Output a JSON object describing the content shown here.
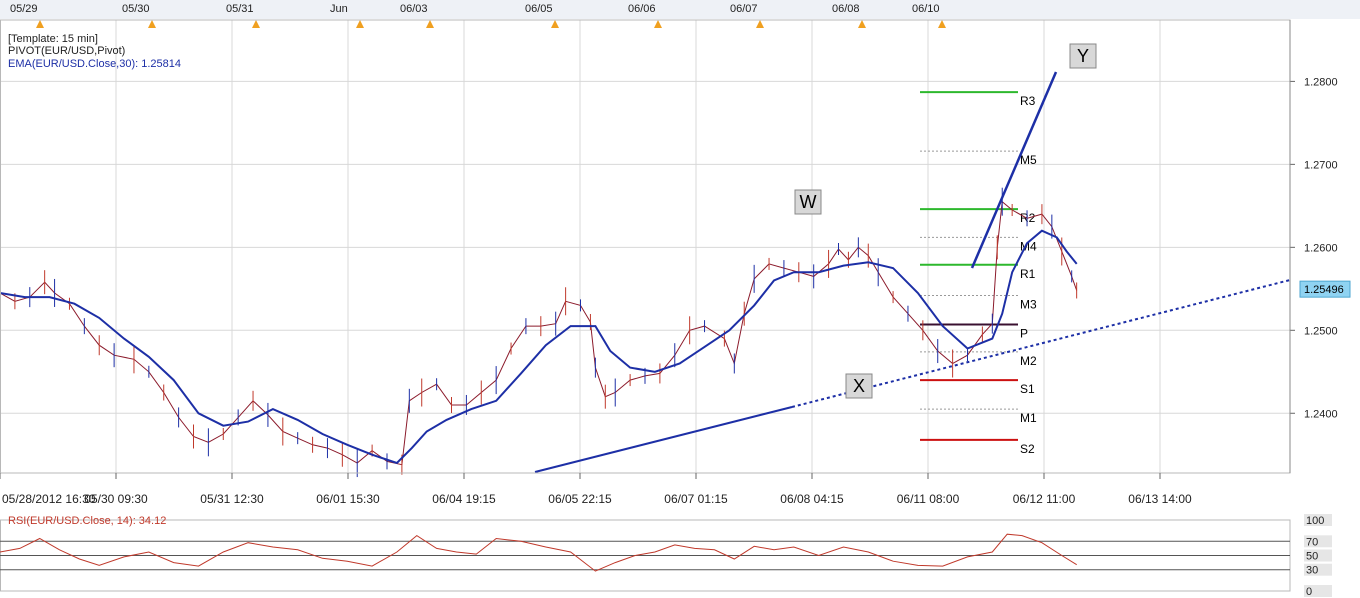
{
  "chart_data": {
    "type": "line",
    "instrument": "EUR/USD",
    "top_dates": [
      "05/29",
      "05/30",
      "05/31",
      "Jun",
      "06/03",
      "06/05",
      "06/06",
      "06/07",
      "06/08",
      "06/10"
    ],
    "x_labels": [
      "05/28/2012 16:30",
      "05/30 09:30",
      "05/31 12:30",
      "06/01 15:30",
      "06/04 19:15",
      "06/05 22:15",
      "06/07 01:15",
      "06/08 04:15",
      "06/11 08:00",
      "06/12 11:00",
      "06/13 14:00"
    ],
    "y_ticks": [
      "1.2800",
      "1.2700",
      "1.2600",
      "1.2500",
      "1.2400"
    ],
    "y_range": [
      1.2328,
      1.2874
    ],
    "current_price": "1.25496",
    "legend": [
      "[Template: 15 min]",
      "PIVOT(EUR/USD,Pivot)",
      "EMA(EUR/USD.Close,30): 1.25814"
    ],
    "pivots": [
      {
        "label": "R3",
        "value": 1.2787,
        "color": "#2db82d",
        "style": "solid"
      },
      {
        "label": "M5",
        "value": 1.2716,
        "color": "#999999",
        "style": "dotted"
      },
      {
        "label": "R2",
        "value": 1.2646,
        "color": "#2db82d",
        "style": "solid"
      },
      {
        "label": "M4",
        "value": 1.2612,
        "color": "#999999",
        "style": "dotted"
      },
      {
        "label": "R1",
        "value": 1.2579,
        "color": "#2db82d",
        "style": "solid"
      },
      {
        "label": "M3",
        "value": 1.2542,
        "color": "#999999",
        "style": "dotted"
      },
      {
        "label": "P",
        "value": 1.2507,
        "color": "#3a1030",
        "style": "solid"
      },
      {
        "label": "M2",
        "value": 1.2474,
        "color": "#999999",
        "style": "dotted"
      },
      {
        "label": "S1",
        "value": 1.244,
        "color": "#cc1111",
        "style": "solid"
      },
      {
        "label": "M1",
        "value": 1.2405,
        "color": "#999999",
        "style": "dotted"
      },
      {
        "label": "S2",
        "value": 1.2368,
        "color": "#cc1111",
        "style": "solid"
      }
    ],
    "price_series": [
      [
        0.0,
        1.2545
      ],
      [
        0.3,
        1.2535
      ],
      [
        0.6,
        1.254
      ],
      [
        0.9,
        1.2558
      ],
      [
        1.1,
        1.2545
      ],
      [
        1.4,
        1.2532
      ],
      [
        1.7,
        1.2505
      ],
      [
        2.0,
        1.2482
      ],
      [
        2.3,
        1.247
      ],
      [
        2.7,
        1.2465
      ],
      [
        3.0,
        1.245
      ],
      [
        3.3,
        1.2425
      ],
      [
        3.6,
        1.2395
      ],
      [
        3.9,
        1.2372
      ],
      [
        4.2,
        1.2365
      ],
      [
        4.5,
        1.2375
      ],
      [
        4.8,
        1.2395
      ],
      [
        5.1,
        1.2415
      ],
      [
        5.4,
        1.2398
      ],
      [
        5.7,
        1.2378
      ],
      [
        6.0,
        1.237
      ],
      [
        6.3,
        1.2362
      ],
      [
        6.6,
        1.2358
      ],
      [
        6.9,
        1.235
      ],
      [
        7.2,
        1.234
      ],
      [
        7.5,
        1.2355
      ],
      [
        7.8,
        1.2342
      ],
      [
        8.1,
        1.2338
      ],
      [
        8.25,
        1.2415
      ],
      [
        8.5,
        1.2425
      ],
      [
        8.8,
        1.2435
      ],
      [
        9.1,
        1.241
      ],
      [
        9.4,
        1.241
      ],
      [
        9.7,
        1.2425
      ],
      [
        10.0,
        1.244
      ],
      [
        10.3,
        1.2478
      ],
      [
        10.6,
        1.2505
      ],
      [
        10.9,
        1.2505
      ],
      [
        11.2,
        1.2508
      ],
      [
        11.4,
        1.2535
      ],
      [
        11.7,
        1.253
      ],
      [
        11.9,
        1.251
      ],
      [
        12.0,
        1.2455
      ],
      [
        12.2,
        1.242
      ],
      [
        12.4,
        1.2425
      ],
      [
        12.7,
        1.244
      ],
      [
        13.0,
        1.2445
      ],
      [
        13.3,
        1.2448
      ],
      [
        13.6,
        1.247
      ],
      [
        13.9,
        1.25
      ],
      [
        14.2,
        1.2505
      ],
      [
        14.6,
        1.249
      ],
      [
        14.8,
        1.246
      ],
      [
        15.0,
        1.252
      ],
      [
        15.2,
        1.2562
      ],
      [
        15.5,
        1.258
      ],
      [
        15.8,
        1.2575
      ],
      [
        16.1,
        1.257
      ],
      [
        16.4,
        1.2565
      ],
      [
        16.7,
        1.258
      ],
      [
        16.9,
        1.2598
      ],
      [
        17.1,
        1.2585
      ],
      [
        17.3,
        1.26
      ],
      [
        17.5,
        1.259
      ],
      [
        17.7,
        1.257
      ],
      [
        18.0,
        1.254
      ],
      [
        18.3,
        1.252
      ],
      [
        18.6,
        1.25
      ],
      [
        18.9,
        1.2475
      ],
      [
        19.2,
        1.246
      ],
      [
        19.5,
        1.247
      ],
      [
        19.8,
        1.2495
      ],
      [
        20.0,
        1.2508
      ],
      [
        20.1,
        1.26
      ],
      [
        20.2,
        1.2655
      ],
      [
        20.4,
        1.2645
      ],
      [
        20.7,
        1.2635
      ],
      [
        21.0,
        1.264
      ],
      [
        21.2,
        1.2625
      ],
      [
        21.4,
        1.2595
      ],
      [
        21.6,
        1.2565
      ],
      [
        21.7,
        1.2548
      ]
    ],
    "ema_series": [
      [
        0.0,
        1.2545
      ],
      [
        0.5,
        1.254
      ],
      [
        1.0,
        1.254
      ],
      [
        1.5,
        1.2532
      ],
      [
        2.0,
        1.2515
      ],
      [
        2.5,
        1.249
      ],
      [
        3.0,
        1.2468
      ],
      [
        3.5,
        1.244
      ],
      [
        4.0,
        1.24
      ],
      [
        4.5,
        1.2385
      ],
      [
        5.0,
        1.239
      ],
      [
        5.5,
        1.2405
      ],
      [
        6.0,
        1.2392
      ],
      [
        6.5,
        1.2375
      ],
      [
        7.0,
        1.2362
      ],
      [
        7.5,
        1.235
      ],
      [
        8.0,
        1.234
      ],
      [
        8.3,
        1.2358
      ],
      [
        8.6,
        1.2378
      ],
      [
        9.0,
        1.2392
      ],
      [
        9.5,
        1.2405
      ],
      [
        10.0,
        1.2415
      ],
      [
        10.5,
        1.2448
      ],
      [
        11.0,
        1.2482
      ],
      [
        11.5,
        1.2505
      ],
      [
        12.0,
        1.2505
      ],
      [
        12.3,
        1.2475
      ],
      [
        12.7,
        1.2455
      ],
      [
        13.2,
        1.245
      ],
      [
        13.7,
        1.246
      ],
      [
        14.2,
        1.248
      ],
      [
        14.7,
        1.25
      ],
      [
        15.2,
        1.253
      ],
      [
        15.6,
        1.256
      ],
      [
        16.0,
        1.257
      ],
      [
        16.5,
        1.257
      ],
      [
        17.0,
        1.2578
      ],
      [
        17.5,
        1.2582
      ],
      [
        18.0,
        1.2575
      ],
      [
        18.5,
        1.2545
      ],
      [
        19.0,
        1.2505
      ],
      [
        19.5,
        1.2478
      ],
      [
        20.0,
        1.249
      ],
      [
        20.2,
        1.252
      ],
      [
        20.4,
        1.257
      ],
      [
        20.7,
        1.2605
      ],
      [
        21.0,
        1.262
      ],
      [
        21.3,
        1.2612
      ],
      [
        21.5,
        1.2595
      ],
      [
        21.7,
        1.258
      ]
    ],
    "rsi": {
      "label": "RSI(EUR/USD.Close, 14): 34.12",
      "ticks": [
        "100",
        "70",
        "50",
        "30",
        "0"
      ],
      "series": [
        [
          0.0,
          55
        ],
        [
          0.4,
          60
        ],
        [
          0.8,
          74
        ],
        [
          1.2,
          58
        ],
        [
          1.6,
          45
        ],
        [
          2.0,
          36
        ],
        [
          2.5,
          48
        ],
        [
          3.0,
          55
        ],
        [
          3.5,
          40
        ],
        [
          4.0,
          35
        ],
        [
          4.5,
          55
        ],
        [
          5.0,
          68
        ],
        [
          5.5,
          62
        ],
        [
          6.0,
          58
        ],
        [
          6.5,
          46
        ],
        [
          7.0,
          42
        ],
        [
          7.5,
          35
        ],
        [
          8.0,
          55
        ],
        [
          8.4,
          78
        ],
        [
          8.8,
          60
        ],
        [
          9.2,
          55
        ],
        [
          9.6,
          52
        ],
        [
          10.0,
          74
        ],
        [
          10.5,
          70
        ],
        [
          11.0,
          62
        ],
        [
          11.5,
          55
        ],
        [
          12.0,
          28
        ],
        [
          12.4,
          40
        ],
        [
          12.8,
          50
        ],
        [
          13.2,
          55
        ],
        [
          13.6,
          65
        ],
        [
          14.0,
          60
        ],
        [
          14.4,
          58
        ],
        [
          14.8,
          45
        ],
        [
          15.2,
          63
        ],
        [
          15.6,
          58
        ],
        [
          16.0,
          62
        ],
        [
          16.5,
          50
        ],
        [
          17.0,
          62
        ],
        [
          17.5,
          55
        ],
        [
          18.0,
          42
        ],
        [
          18.5,
          36
        ],
        [
          19.0,
          35
        ],
        [
          19.5,
          48
        ],
        [
          20.0,
          55
        ],
        [
          20.3,
          80
        ],
        [
          20.6,
          78
        ],
        [
          21.0,
          68
        ],
        [
          21.4,
          50
        ],
        [
          21.7,
          37
        ]
      ]
    },
    "wave_labels": [
      "W",
      "X",
      "Y"
    ]
  }
}
